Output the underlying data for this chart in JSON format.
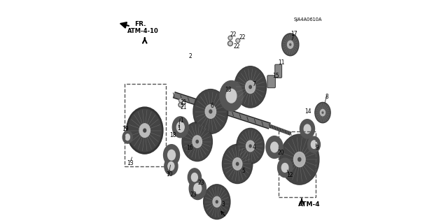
{
  "background_color": "#ffffff",
  "part_number_label": "SJA4A0610A",
  "atm4_label": "ATM-4",
  "atm4_10_label": "ATM-4-10",
  "fr_label": "FR.",
  "line_color": "#000000",
  "gear_color": "#555555",
  "dashed_box_color": "#666666"
}
